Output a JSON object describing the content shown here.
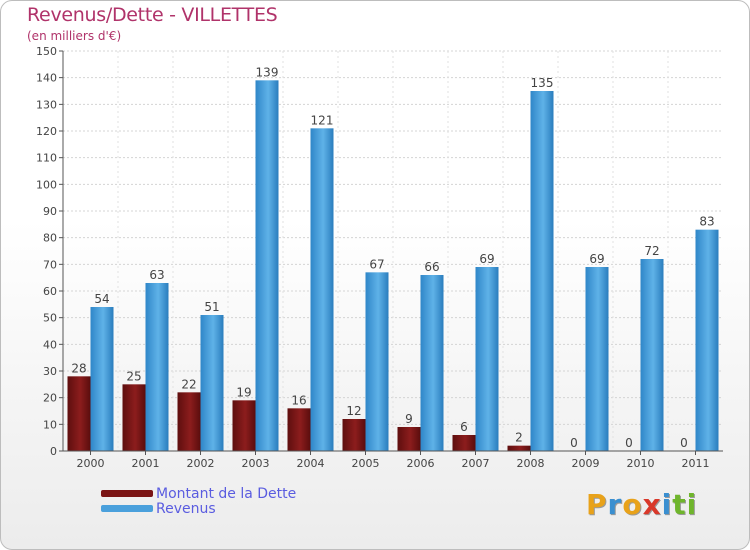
{
  "chart_data": {
    "type": "bar",
    "title": "Revenus/Dette - VILLETTES",
    "subtitle": "(en milliers d'€)",
    "categories": [
      "2000",
      "2001",
      "2002",
      "2003",
      "2004",
      "2005",
      "2006",
      "2007",
      "2008",
      "2009",
      "2010",
      "2011"
    ],
    "series": [
      {
        "name": "Montant de la Dette",
        "color": "#7a1414",
        "values": [
          28,
          25,
          22,
          19,
          16,
          12,
          9,
          6,
          2,
          0,
          0,
          0
        ]
      },
      {
        "name": "Revenus",
        "color": "#4aa0dc",
        "values": [
          54,
          63,
          51,
          139,
          121,
          67,
          66,
          69,
          135,
          69,
          72,
          83
        ]
      }
    ],
    "ylim": [
      0,
      150
    ],
    "yticks": [
      0,
      10,
      20,
      30,
      40,
      50,
      60,
      70,
      80,
      90,
      100,
      110,
      120,
      130,
      140,
      150
    ],
    "grid": true,
    "legend_position": "bottom-left"
  },
  "logo": {
    "letters": [
      "P",
      "r",
      "o",
      "x",
      "i",
      "t",
      "i"
    ],
    "colors": [
      "#e8a21a",
      "#3a8fd0",
      "#e8a21a",
      "#d9382a",
      "#3a8fd0",
      "#6fb52c",
      "#6fb52c"
    ]
  }
}
